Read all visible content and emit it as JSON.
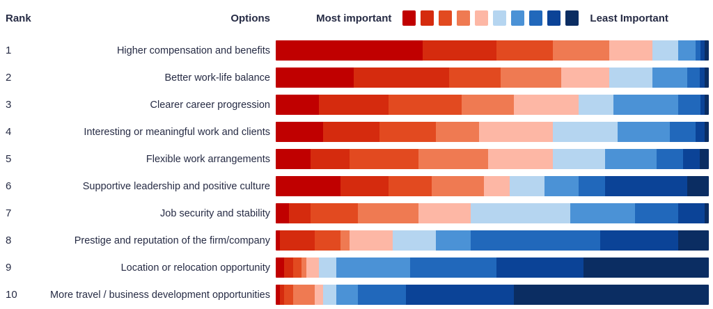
{
  "header": {
    "rank": "Rank",
    "options": "Options"
  },
  "legend": {
    "left_label": "Most important",
    "right_label": "Least Important"
  },
  "palette": [
    "#c00000",
    "#d52b0e",
    "#e24a20",
    "#ef7a52",
    "#fdb7a5",
    "#b5d5f0",
    "#4b92d6",
    "#2168bb",
    "#0b4397",
    "#0b2d62"
  ],
  "text_color": "#262b44",
  "chart_data": {
    "type": "bar",
    "stacked": true,
    "orientation": "horizontal",
    "unit": "percent_of_row",
    "legend": [
      "Most important",
      "Least Important"
    ],
    "rank_levels": [
      1,
      2,
      3,
      4,
      5,
      6,
      7,
      8,
      9,
      10
    ],
    "rank_colors": [
      "#c00000",
      "#d52b0e",
      "#e24a20",
      "#ef7a52",
      "#fdb7a5",
      "#b5d5f0",
      "#4b92d6",
      "#2168bb",
      "#0b4397",
      "#0b2d62"
    ],
    "rows": [
      {
        "rank": "1",
        "label": "Higher compensation and benefits",
        "values": [
          34,
          17,
          13,
          13,
          10,
          6,
          4,
          1,
          1,
          1
        ]
      },
      {
        "rank": "2",
        "label": "Better work-life balance",
        "values": [
          18,
          22,
          12,
          14,
          11,
          10,
          8,
          3,
          1,
          1
        ]
      },
      {
        "rank": "3",
        "label": "Clearer career progression",
        "values": [
          10,
          16,
          17,
          12,
          15,
          8,
          15,
          5,
          1,
          1
        ]
      },
      {
        "rank": "4",
        "label": "Interesting or meaningful work and clients",
        "values": [
          11,
          13,
          13,
          10,
          17,
          15,
          12,
          6,
          2,
          1
        ]
      },
      {
        "rank": "5",
        "label": "Flexible work arrangements",
        "values": [
          8,
          9,
          16,
          16,
          15,
          12,
          12,
          6,
          4,
          2
        ]
      },
      {
        "rank": "6",
        "label": "Supportive leadership and positive culture",
        "values": [
          15,
          11,
          10,
          12,
          6,
          8,
          8,
          6,
          19,
          5
        ]
      },
      {
        "rank": "7",
        "label": "Job security and stability",
        "values": [
          3,
          5,
          11,
          14,
          12,
          23,
          15,
          10,
          6,
          1
        ]
      },
      {
        "rank": "8",
        "label": "Prestige and reputation of the firm/company",
        "values": [
          1,
          8,
          6,
          2,
          10,
          10,
          8,
          30,
          18,
          7
        ]
      },
      {
        "rank": "9",
        "label": "Location or relocation opportunity",
        "values": [
          2,
          2,
          2,
          1,
          3,
          4,
          17,
          20,
          20,
          29
        ]
      },
      {
        "rank": "10",
        "label": "More travel / business development opportunities",
        "values": [
          1,
          1,
          2,
          5,
          2,
          3,
          5,
          11,
          25,
          45
        ]
      }
    ]
  }
}
